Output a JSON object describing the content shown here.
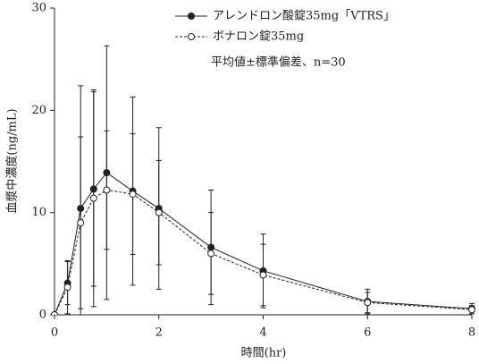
{
  "chart_data": {
    "type": "line",
    "x": [
      0,
      0.25,
      0.5,
      0.75,
      1,
      1.5,
      2,
      3,
      4,
      6,
      8
    ],
    "series": [
      {
        "name": "アレンドロン酸錠35mg「VTRS」",
        "color": "#222222",
        "marker": "filled",
        "line": "solid",
        "values": [
          0,
          3.1,
          10.4,
          12.3,
          13.9,
          12.1,
          10.4,
          6.6,
          4.3,
          1.3,
          0.6
        ],
        "errors": [
          0,
          2.1,
          12.0,
          9.5,
          12.4,
          9.2,
          7.9,
          5.6,
          3.6,
          1.2,
          0.5
        ]
      },
      {
        "name": "ボナロン錠35mg",
        "color": "#222222",
        "marker": "open",
        "line": "dashed",
        "values": [
          0,
          2.7,
          9.0,
          11.4,
          12.2,
          11.8,
          10.0,
          6.0,
          3.9,
          1.2,
          0.5
        ],
        "errors": [
          0,
          2.6,
          8.4,
          10.6,
          5.8,
          5.9,
          5.1,
          4.0,
          3.0,
          1.0,
          0.4
        ]
      }
    ],
    "annotation": "平均値±標準偏差、n=30",
    "x_label": "時間(hr)",
    "y_label": "血漿中濃度(ng/mL)",
    "xlim": [
      0,
      8
    ],
    "xticks": [
      0,
      2,
      4,
      6,
      8
    ],
    "ylim": [
      0,
      30
    ],
    "yticks": [
      0,
      10,
      20,
      30
    ]
  }
}
